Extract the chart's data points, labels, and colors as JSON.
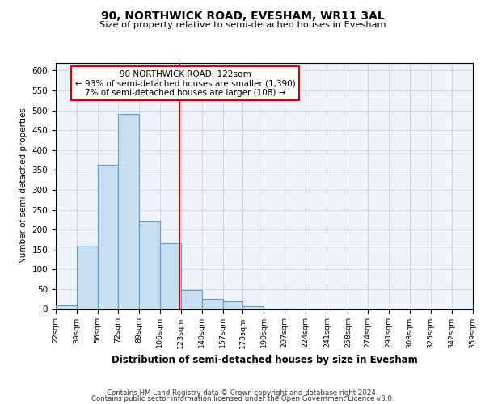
{
  "title": "90, NORTHWICK ROAD, EVESHAM, WR11 3AL",
  "subtitle": "Size of property relative to semi-detached houses in Evesham",
  "xlabel": "Distribution of semi-detached houses by size in Evesham",
  "ylabel": "Number of semi-detached properties",
  "bin_edges": [
    22,
    39,
    56,
    72,
    89,
    106,
    123,
    140,
    157,
    173,
    190,
    207,
    224,
    241,
    258,
    274,
    291,
    308,
    325,
    342,
    359
  ],
  "bin_labels": [
    "22sqm",
    "39sqm",
    "56sqm",
    "72sqm",
    "89sqm",
    "106sqm",
    "123sqm",
    "140sqm",
    "157sqm",
    "173sqm",
    "190sqm",
    "207sqm",
    "224sqm",
    "241sqm",
    "258sqm",
    "274sqm",
    "291sqm",
    "308sqm",
    "325sqm",
    "342sqm",
    "359sqm"
  ],
  "counts": [
    10,
    160,
    363,
    490,
    220,
    165,
    48,
    25,
    20,
    7,
    1,
    1,
    0,
    0,
    1,
    0,
    0,
    0,
    0,
    1
  ],
  "bar_color": "#c8dff0",
  "bar_edge_color": "#5b9bd5",
  "property_size": 122,
  "vline_color": "#cc0000",
  "annotation_line1": "90 NORTHWICK ROAD: 122sqm",
  "annotation_line2": "← 93% of semi-detached houses are smaller (1,390)",
  "annotation_line3": "7% of semi-detached houses are larger (108) →",
  "annotation_box_color": "#ffffff",
  "annotation_box_edge": "#cc0000",
  "ylim": [
    0,
    620
  ],
  "yticks": [
    0,
    50,
    100,
    150,
    200,
    250,
    300,
    350,
    400,
    450,
    500,
    550,
    600
  ],
  "footer_line1": "Contains HM Land Registry data © Crown copyright and database right 2024.",
  "footer_line2": "Contains public sector information licensed under the Open Government Licence v3.0.",
  "grid_color": "#d0d8e8",
  "background_color": "#eef2fa"
}
